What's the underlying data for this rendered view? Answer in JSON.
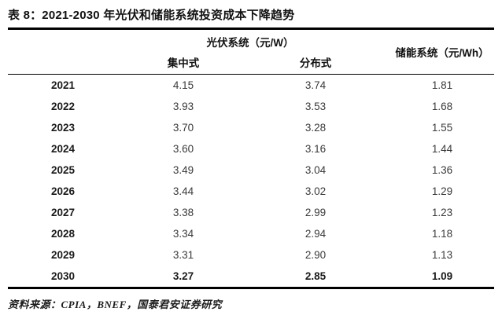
{
  "title": "表 8：2021-2030 年光伏和储能系统投资成本下降趋势",
  "table": {
    "group_headers": {
      "pv": "光伏系统（元/W）",
      "storage": "储能系统（元/Wh）"
    },
    "sub_headers": {
      "centralized": "集中式",
      "distributed": "分布式"
    },
    "rows": [
      {
        "year": "2021",
        "centralized": "4.15",
        "distributed": "3.74",
        "storage": "1.81"
      },
      {
        "year": "2022",
        "centralized": "3.93",
        "distributed": "3.53",
        "storage": "1.68"
      },
      {
        "year": "2023",
        "centralized": "3.70",
        "distributed": "3.28",
        "storage": "1.55"
      },
      {
        "year": "2024",
        "centralized": "3.60",
        "distributed": "3.16",
        "storage": "1.44"
      },
      {
        "year": "2025",
        "centralized": "3.49",
        "distributed": "3.04",
        "storage": "1.36"
      },
      {
        "year": "2026",
        "centralized": "3.44",
        "distributed": "3.02",
        "storage": "1.29"
      },
      {
        "year": "2027",
        "centralized": "3.38",
        "distributed": "2.99",
        "storage": "1.23"
      },
      {
        "year": "2028",
        "centralized": "3.34",
        "distributed": "2.94",
        "storage": "1.18"
      },
      {
        "year": "2029",
        "centralized": "3.31",
        "distributed": "2.90",
        "storage": "1.13"
      },
      {
        "year": "2030",
        "centralized": "3.27",
        "distributed": "2.85",
        "storage": "1.09"
      }
    ]
  },
  "source": "资料来源：CPIA，BNEF，国泰君安证券研究",
  "colors": {
    "rule": "#000000",
    "title_text": "#111111",
    "value_text": "#3a3a3a"
  }
}
